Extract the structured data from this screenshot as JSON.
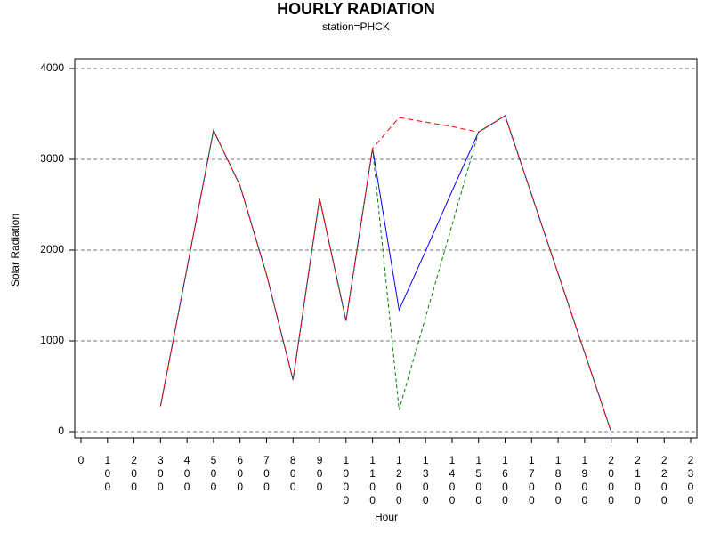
{
  "chart_data": {
    "type": "line",
    "title": "HOURLY RADIATION",
    "subtitle": "station=PHCK",
    "x_label": "Hour",
    "y_label": "Solar Radiation",
    "x": [
      300,
      400,
      500,
      600,
      700,
      800,
      900,
      1000,
      1100,
      1200,
      1300,
      1400,
      1500,
      1600,
      1700,
      1800,
      1900,
      2000
    ],
    "series": [
      {
        "color": "#0000ff",
        "dash": "none",
        "values": [
          280,
          1800,
          3320,
          2710,
          1730,
          570,
          2570,
          1220,
          3120,
          1340,
          1990,
          2650,
          3300,
          3480,
          2610,
          1740,
          870,
          0
        ]
      },
      {
        "color": "#008000",
        "dash": "4,3",
        "values": [
          280,
          1800,
          3320,
          2710,
          1730,
          570,
          2570,
          1220,
          3120,
          240,
          1260,
          2280,
          3300,
          3480,
          2610,
          1740,
          870,
          0
        ]
      },
      {
        "color": "#ff0000",
        "dash": "6,4",
        "values": [
          280,
          1800,
          3320,
          2710,
          1730,
          570,
          2570,
          1220,
          3120,
          3460,
          3410,
          3360,
          3300,
          3480,
          2610,
          1740,
          870,
          0
        ]
      }
    ],
    "xlim": [
      0,
      2300
    ],
    "xticks": [
      0,
      100,
      200,
      300,
      400,
      500,
      600,
      700,
      800,
      900,
      1000,
      1100,
      1200,
      1300,
      1400,
      1500,
      1600,
      1700,
      1800,
      1900,
      2000,
      2100,
      2200,
      2300
    ],
    "ylim": [
      0,
      4000
    ],
    "yticks": [
      0,
      1000,
      2000,
      3000,
      4000
    ],
    "grid": true
  }
}
